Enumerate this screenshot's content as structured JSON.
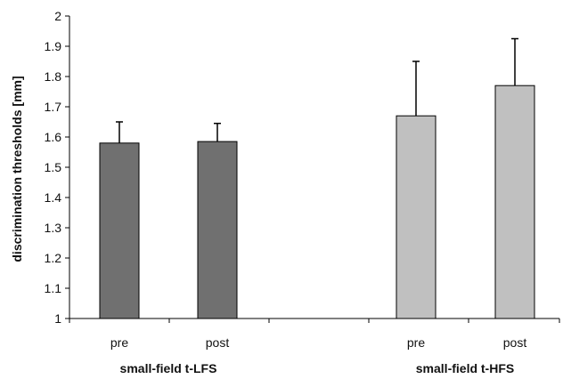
{
  "chart_data": {
    "type": "bar",
    "title": "",
    "xlabel": "",
    "ylabel": "discrimination thresholds [mm]",
    "ylim": [
      1,
      2
    ],
    "yticks": [
      "1",
      "1.1",
      "1.2",
      "1.3",
      "1.4",
      "1.5",
      "1.6",
      "1.7",
      "1.8",
      "1.9",
      "2"
    ],
    "grid": false,
    "legend": "none",
    "groups": [
      {
        "label": "small-field t-LFS",
        "color": "#707070",
        "bars": [
          {
            "category": "pre",
            "value": 1.58,
            "error": 0.07
          },
          {
            "category": "post",
            "value": 1.585,
            "error": 0.06
          }
        ]
      },
      {
        "label": "small-field t-HFS",
        "color": "#c0c0c0",
        "bars": [
          {
            "category": "pre",
            "value": 1.67,
            "error": 0.18
          },
          {
            "category": "post",
            "value": 1.77,
            "error": 0.155
          }
        ]
      }
    ]
  }
}
